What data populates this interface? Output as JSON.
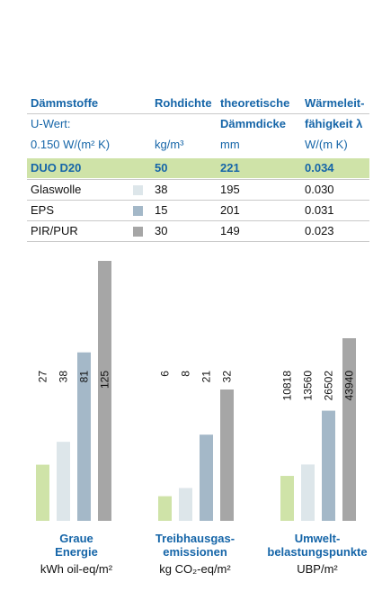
{
  "table": {
    "headers": {
      "col1": [
        "Dämmstoffe",
        "U-Wert:",
        "0.150 W/(m² K)"
      ],
      "col2": [
        "Rohdichte",
        "",
        "kg/m³"
      ],
      "col3": [
        "theoretische",
        "Dämmdicke",
        "mm"
      ],
      "col4": [
        "Wärmeleit-",
        "fähigkeit λ",
        "W/(m K)"
      ]
    },
    "rows": [
      {
        "name": "DUO D20",
        "density": "50",
        "thickness": "221",
        "lambda": "0.034",
        "swatch": "#cfe3a8",
        "highlight": true
      },
      {
        "name": "Glaswolle",
        "density": "38",
        "thickness": "195",
        "lambda": "0.030",
        "swatch": "#dde6ea",
        "highlight": false
      },
      {
        "name": "EPS",
        "density": "15",
        "thickness": "201",
        "lambda": "0.031",
        "swatch": "#a4b8c8",
        "highlight": false
      },
      {
        "name": "PIR/PUR",
        "density": "30",
        "thickness": "149",
        "lambda": "0.023",
        "swatch": "#a6a6a6",
        "highlight": false
      }
    ]
  },
  "colors": [
    "#cfe3a8",
    "#dde6ea",
    "#a4b8c8",
    "#a6a6a6"
  ],
  "chart_data": [
    {
      "type": "bar",
      "title": "Graue Energie",
      "title_lines": [
        "Graue",
        "Energie"
      ],
      "unit": "kWh oil-eq/m²",
      "categories": [
        "DUO D20",
        "Glaswolle",
        "EPS",
        "PIR/PUR"
      ],
      "values": [
        27,
        38,
        81,
        125
      ],
      "value_labels": [
        "27",
        "38",
        "81",
        "125"
      ]
    },
    {
      "type": "bar",
      "title": "Treibhausgas-emissionen",
      "title_lines": [
        "Treibhausgas-",
        "emissionen"
      ],
      "unit": "kg CO₂-eq/m²",
      "categories": [
        "DUO D20",
        "Glaswolle",
        "EPS",
        "PIR/PUR"
      ],
      "values": [
        6,
        8,
        21,
        32
      ],
      "value_labels": [
        "6",
        "8",
        "21",
        "32"
      ]
    },
    {
      "type": "bar",
      "title": "Umwelt-belastungspunkte",
      "title_lines": [
        "Umwelt-",
        "belastungspunkte"
      ],
      "unit": "UBP/m²",
      "categories": [
        "DUO D20",
        "Glaswolle",
        "EPS",
        "PIR/PUR"
      ],
      "values": [
        10818,
        13560,
        26502,
        43940
      ],
      "value_labels": [
        "10818",
        "13560",
        "26502",
        "43940"
      ]
    }
  ]
}
